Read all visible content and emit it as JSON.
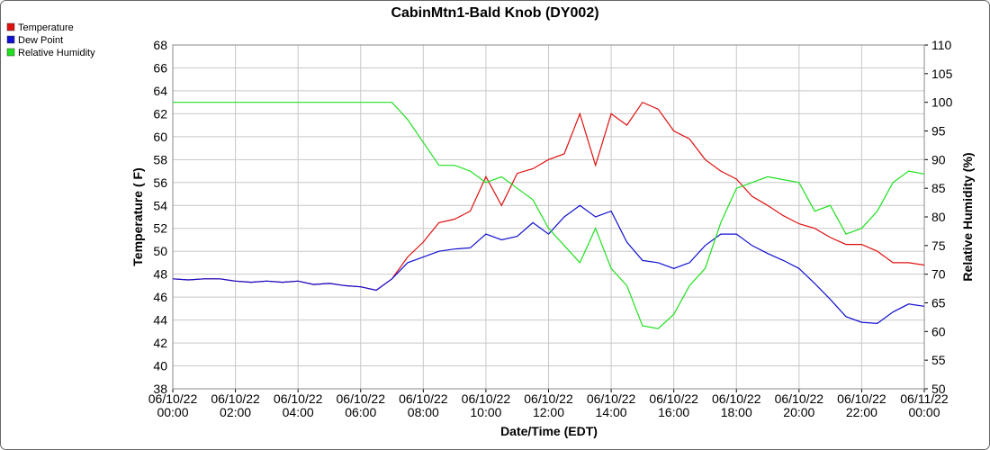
{
  "chart_data": {
    "type": "line",
    "title": "CabinMtn1-Bald Knob (DY002)",
    "x_label": "Date/Time (EDT)",
    "y_label": "Temperature ( F)",
    "y2_label": "Relative Humidity (%)",
    "grid": true,
    "legend": "top-left",
    "x": [
      "06/10/22 00:00",
      "06/10/22 00:30",
      "06/10/22 01:00",
      "06/10/22 01:30",
      "06/10/22 02:00",
      "06/10/22 02:30",
      "06/10/22 03:00",
      "06/10/22 03:30",
      "06/10/22 04:00",
      "06/10/22 04:30",
      "06/10/22 05:00",
      "06/10/22 05:30",
      "06/10/22 06:00",
      "06/10/22 06:30",
      "06/10/22 07:00",
      "06/10/22 07:30",
      "06/10/22 08:00",
      "06/10/22 08:30",
      "06/10/22 09:00",
      "06/10/22 09:30",
      "06/10/22 10:00",
      "06/10/22 10:30",
      "06/10/22 11:00",
      "06/10/22 11:30",
      "06/10/22 12:00",
      "06/10/22 12:30",
      "06/10/22 13:00",
      "06/10/22 13:30",
      "06/10/22 14:00",
      "06/10/22 14:30",
      "06/10/22 15:00",
      "06/10/22 15:30",
      "06/10/22 16:00",
      "06/10/22 16:30",
      "06/10/22 17:00",
      "06/10/22 17:30",
      "06/10/22 18:00",
      "06/10/22 18:30",
      "06/10/22 19:00",
      "06/10/22 19:30",
      "06/10/22 20:00",
      "06/10/22 20:30",
      "06/10/22 21:00",
      "06/10/22 21:30",
      "06/10/22 22:00",
      "06/10/22 22:30",
      "06/10/22 23:00",
      "06/10/22 23:30",
      "06/11/22 00:00"
    ],
    "xlim": [
      "06/10/22 00:00",
      "06/11/22 00:00"
    ],
    "xticks": [
      "06/10/22 00:00",
      "06/10/22 02:00",
      "06/10/22 04:00",
      "06/10/22 06:00",
      "06/10/22 08:00",
      "06/10/22 10:00",
      "06/10/22 12:00",
      "06/10/22 14:00",
      "06/10/22 16:00",
      "06/10/22 18:00",
      "06/10/22 20:00",
      "06/10/22 22:00",
      "06/11/22 00:00"
    ],
    "ylim": [
      38,
      68
    ],
    "yticks": [
      38,
      40,
      42,
      44,
      46,
      48,
      50,
      52,
      54,
      56,
      58,
      60,
      62,
      64,
      66,
      68
    ],
    "y2lim": [
      50,
      110
    ],
    "y2ticks": [
      50,
      55,
      60,
      65,
      70,
      75,
      80,
      85,
      90,
      95,
      100,
      105,
      110
    ],
    "series": [
      {
        "name": "Temperature",
        "color": "#e01010",
        "values": [
          47.6,
          47.5,
          47.6,
          47.6,
          47.4,
          47.3,
          47.4,
          47.3,
          47.4,
          47.1,
          47.2,
          47.0,
          46.9,
          46.6,
          47.6,
          49.5,
          50.8,
          52.5,
          52.8,
          53.5,
          56.5,
          54.0,
          56.8,
          57.2,
          58.0,
          58.5,
          62.0,
          57.5,
          62.0,
          61.0,
          63.0,
          62.4,
          60.5,
          59.8,
          58.0,
          57.0,
          56.3,
          54.8,
          54.0,
          53.1,
          52.4,
          52.0,
          51.2,
          50.6,
          50.6,
          50.0,
          49.0,
          49.0,
          48.8
        ]
      },
      {
        "name": "Dew Point",
        "color": "#1010d0",
        "values": [
          47.6,
          47.5,
          47.6,
          47.6,
          47.4,
          47.3,
          47.4,
          47.3,
          47.4,
          47.1,
          47.2,
          47.0,
          46.9,
          46.6,
          47.6,
          49.0,
          49.5,
          50.0,
          50.2,
          50.3,
          51.5,
          51.0,
          51.3,
          52.5,
          51.5,
          53.0,
          54.0,
          53.0,
          53.5,
          50.8,
          49.2,
          49.0,
          48.5,
          49.0,
          50.5,
          51.5,
          51.5,
          50.5,
          49.8,
          49.2,
          48.5,
          47.2,
          45.8,
          44.3,
          43.8,
          43.7,
          44.7,
          45.4,
          45.2
        ]
      },
      {
        "name": "Relative Humidity",
        "color": "#20e020",
        "axis": "y2",
        "values": [
          100,
          100,
          100,
          100,
          100,
          100,
          100,
          100,
          100,
          100,
          100,
          100,
          100,
          100,
          100,
          97,
          93,
          89,
          89,
          88,
          86,
          87,
          85,
          83,
          78,
          75,
          72,
          78,
          71,
          68,
          61,
          60.5,
          63,
          68,
          71,
          79,
          85,
          86,
          87,
          86.5,
          86,
          81,
          82,
          77,
          78,
          81,
          86,
          88,
          87.5
        ]
      }
    ]
  }
}
